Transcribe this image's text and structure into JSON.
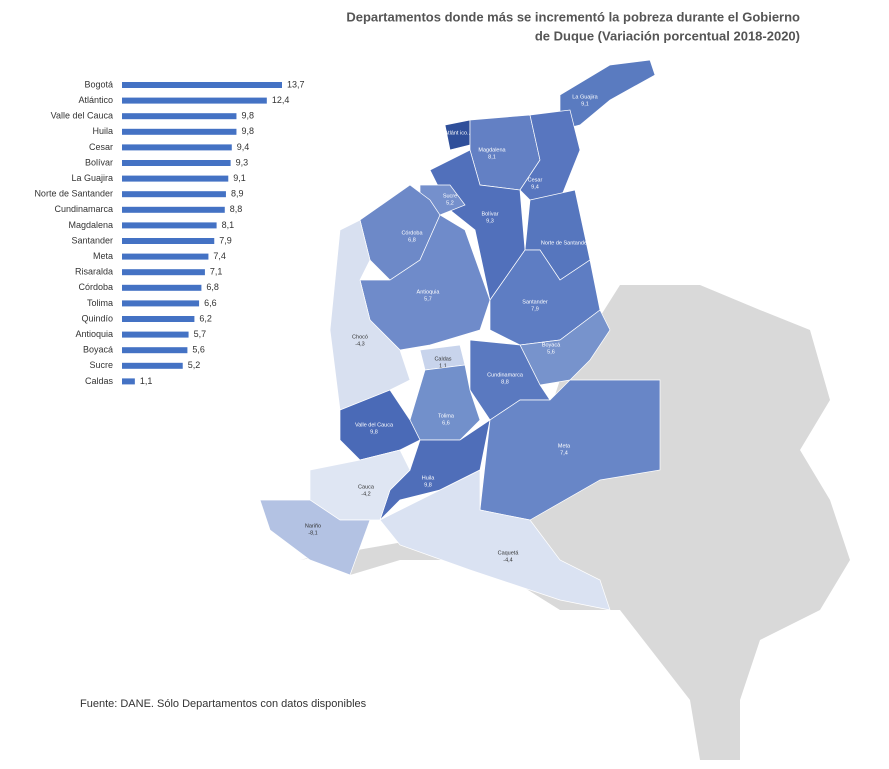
{
  "chart_data": {
    "type": "bar",
    "orientation": "horizontal",
    "title": "Departamentos donde más se incrementó la pobreza durante el Gobierno de Duque (Variación porcentual 2018-2020)",
    "source": "Fuente: DANE. Sólo Departamentos con datos disponibles",
    "color": "#4472c4",
    "categories": [
      "Bogotá",
      "Atlántico",
      "Valle del Cauca",
      "Huila",
      "Cesar",
      "Bolívar",
      "La Guajira",
      "Norte de Santander",
      "Cundinamarca",
      "Magdalena",
      "Santander",
      "Meta",
      "Risaralda",
      "Córdoba",
      "Tolima",
      "Quindío",
      "Antioquia",
      "Boyacá",
      "Sucre",
      "Caldas"
    ],
    "values": [
      13.7,
      12.4,
      9.8,
      9.8,
      9.4,
      9.3,
      9.1,
      8.9,
      8.8,
      8.1,
      7.9,
      7.4,
      7.1,
      6.8,
      6.6,
      6.2,
      5.7,
      5.6,
      5.2,
      1.1
    ],
    "value_labels": [
      "13,7",
      "12,4",
      "9,8",
      "9,8",
      "9,4",
      "9,3",
      "9,1",
      "8,9",
      "8,8",
      "8,1",
      "7,9",
      "7,4",
      "7,1",
      "6,8",
      "6,6",
      "6,2",
      "5,7",
      "5,6",
      "5,2",
      "1,1"
    ],
    "map_regions": [
      {
        "name": "La Guajira",
        "label": "9,1"
      },
      {
        "name": "Atlánt ico...",
        "label": ""
      },
      {
        "name": "Magdalena",
        "label": "8,1"
      },
      {
        "name": "Cesar",
        "label": "9,4"
      },
      {
        "name": "Bolívar",
        "label": "9,3"
      },
      {
        "name": "Sucre",
        "label": "5,2"
      },
      {
        "name": "Córdoba",
        "label": "6,8"
      },
      {
        "name": "Norte de Santander...",
        "label": ""
      },
      {
        "name": "Antioquia",
        "label": "5,7"
      },
      {
        "name": "Santander",
        "label": "7,9"
      },
      {
        "name": "Boyacá",
        "label": "5,6"
      },
      {
        "name": "Chocó",
        "label": "-4,3"
      },
      {
        "name": "Caldas",
        "label": "1,1"
      },
      {
        "name": "Cundinamarca",
        "label": "8,8"
      },
      {
        "name": "Tolima",
        "label": "6,6"
      },
      {
        "name": "Valle del Cauca",
        "label": "9,8"
      },
      {
        "name": "Huila",
        "label": "9,8"
      },
      {
        "name": "Meta",
        "label": "7,4"
      },
      {
        "name": "Cauca",
        "label": "-4,2"
      },
      {
        "name": "Nariño",
        "label": "-8,1"
      },
      {
        "name": "Caquetá",
        "label": "-4,4"
      }
    ]
  }
}
